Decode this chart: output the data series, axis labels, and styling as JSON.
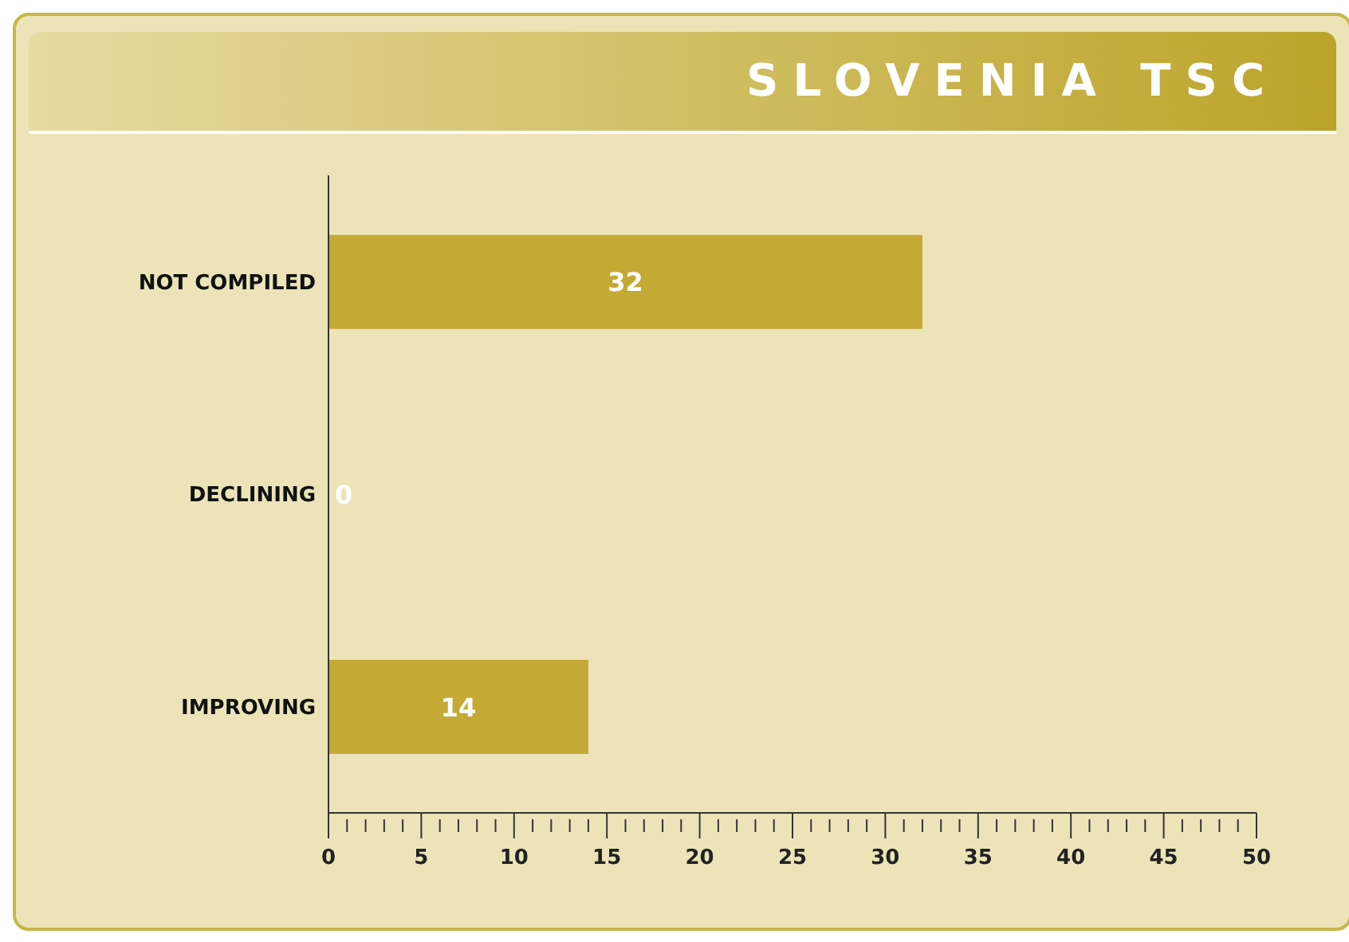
{
  "chart_data": {
    "type": "bar",
    "orientation": "horizontal",
    "title": "SLOVENIA TSC",
    "categories": [
      "NOT COMPILED",
      "DECLINING",
      "IMPROVING"
    ],
    "values": [
      32,
      0,
      14
    ],
    "color": "#c4aa35",
    "data_labels": true,
    "grid": false,
    "legend": false,
    "xlim": [
      0,
      50
    ],
    "xticks": [
      0,
      {
        "value": 1,
        "label": null
      },
      {
        "value": 2,
        "label": null
      },
      {
        "value": 3,
        "label": null
      },
      {
        "value": 4,
        "label": null
      },
      5,
      {
        "value": 6,
        "label": null
      },
      {
        "value": 7,
        "label": null
      },
      {
        "value": 8,
        "label": null
      },
      {
        "value": 9,
        "label": null
      },
      10,
      {
        "value": 11,
        "label": null
      },
      {
        "value": 12,
        "label": null
      },
      {
        "value": 13,
        "label": null
      },
      {
        "value": 14,
        "label": null
      },
      15,
      {
        "value": 16,
        "label": null
      },
      {
        "value": 17,
        "label": null
      },
      {
        "value": 18,
        "label": null
      },
      {
        "value": 19,
        "label": null
      },
      20,
      {
        "value": 21,
        "label": null
      },
      {
        "value": 22,
        "label": null
      },
      {
        "value": 23,
        "label": null
      },
      {
        "value": 24,
        "label": null
      },
      25,
      {
        "value": 26,
        "label": null
      },
      {
        "value": 27,
        "label": null
      },
      {
        "value": 28,
        "label": null
      },
      {
        "value": 29,
        "label": null
      },
      30,
      {
        "value": 31,
        "label": null
      },
      {
        "value": 32,
        "label": null
      },
      {
        "value": 33,
        "label": null
      },
      {
        "value": 34,
        "label": null
      },
      35,
      {
        "value": 36,
        "label": null
      },
      {
        "value": 37,
        "label": null
      },
      {
        "value": 38,
        "label": null
      },
      {
        "value": 39,
        "label": null
      },
      40,
      {
        "value": 41,
        "label": null
      },
      {
        "value": 42,
        "label": null
      },
      {
        "value": 43,
        "label": null
      },
      {
        "value": 44,
        "label": null
      },
      45,
      {
        "value": 46,
        "label": null
      },
      {
        "value": 47,
        "label": null
      },
      {
        "value": 48,
        "label": null
      },
      {
        "value": 49,
        "label": null
      },
      50
    ]
  }
}
